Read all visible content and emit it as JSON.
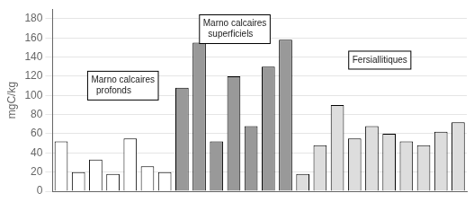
{
  "chart_data": {
    "type": "bar",
    "categories": [
      null,
      null,
      null,
      null,
      null,
      null,
      null,
      null,
      null,
      null,
      null,
      null,
      null,
      null,
      null,
      null,
      null,
      null,
      null,
      null,
      null,
      null,
      null,
      null
    ],
    "values": [
      52,
      20,
      33,
      18,
      55,
      26,
      20,
      108,
      155,
      52,
      120,
      68,
      130,
      158,
      18,
      48,
      90,
      55,
      68,
      60,
      52,
      48,
      62,
      72
    ],
    "colors": [
      "white",
      "white",
      "white",
      "white",
      "white",
      "white",
      "white",
      "#999999",
      "#999999",
      "#999999",
      "#999999",
      "#999999",
      "#999999",
      "#999999",
      "#dddddd",
      "#dddddd",
      "#dddddd",
      "#dddddd",
      "#dddddd",
      "#dddddd",
      "#dddddd",
      "#dddddd",
      "#dddddd",
      "#dddddd"
    ],
    "ylabel": "mgC/kg",
    "ylim": [
      0,
      190
    ],
    "yticks": [
      0,
      20,
      40,
      60,
      80,
      100,
      120,
      140,
      160,
      180
    ],
    "grid": true,
    "tick_labels": "y",
    "annotations": [
      "Marno calcaires\n  profonds",
      "Marno calcaires\n  superficiels",
      "Fersiallitiques"
    ]
  }
}
